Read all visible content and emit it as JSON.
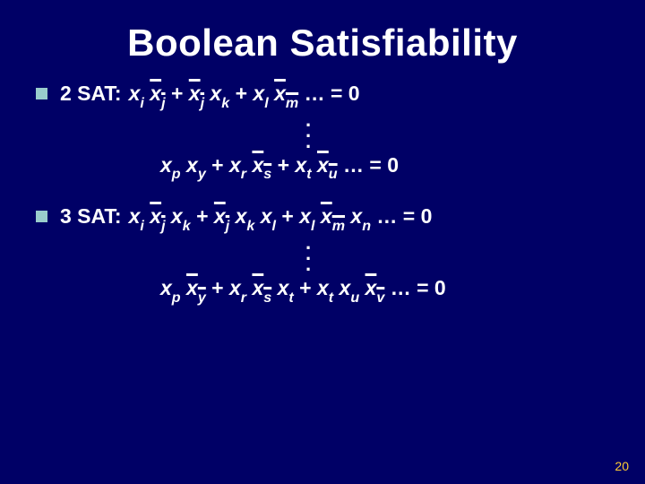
{
  "title": "Boolean  Satisfiability",
  "page_number": "20",
  "colors": {
    "background": "#000066",
    "text": "#ffffff",
    "bullet": "#99cccc",
    "page_number": "#ffcc33"
  },
  "sat2": {
    "label": "2 SAT:",
    "line1": {
      "terms": [
        {
          "a": "x",
          "asub": "i",
          "b": "x",
          "bsub": "j",
          "bbar": true
        },
        {
          "a": "x",
          "asub": "j",
          "abar": true,
          "b": "x",
          "bsub": "k"
        },
        {
          "a": "x",
          "asub": "l",
          "b": "x",
          "bsub": "m",
          "bbar": true
        }
      ],
      "tail": "… = 0"
    },
    "line2": {
      "terms": [
        {
          "a": "x",
          "asub": "p",
          "b": "x",
          "bsub": "y"
        },
        {
          "a": "x",
          "asub": "r",
          "b": "x",
          "bsub": "s",
          "bbar": true
        },
        {
          "a": "x",
          "asub": "t",
          "b": "x",
          "bsub": "u",
          "bbar": true
        }
      ],
      "tail": "… = 0"
    }
  },
  "sat3": {
    "label": "3 SAT:",
    "line1": {
      "terms": [
        {
          "a": "x",
          "asub": "i",
          "b": "x",
          "bsub": "j",
          "bbar": true,
          "c": "x",
          "csub": "k"
        },
        {
          "a": "x",
          "asub": "j",
          "abar": true,
          "b": "x",
          "bsub": "k",
          "c": "x",
          "csub": "l"
        },
        {
          "a": "x",
          "asub": "l",
          "b": "x",
          "bsub": "m",
          "bbar": true,
          "c": "x",
          "csub": "n"
        }
      ],
      "tail": "… = 0"
    },
    "line2": {
      "terms": [
        {
          "a": "x",
          "asub": "p",
          "b": "x",
          "bsub": "y",
          "bbar": true
        },
        {
          "a": "x",
          "asub": "r",
          "b": "x",
          "bsub": "s",
          "bbar": true,
          "c": "x",
          "csub": "t"
        },
        {
          "a": "x",
          "asub": "t",
          "b": "x",
          "bsub": "u",
          "c": "x",
          "csub": "v",
          "cbar": true
        }
      ],
      "tail": "… = 0"
    }
  }
}
